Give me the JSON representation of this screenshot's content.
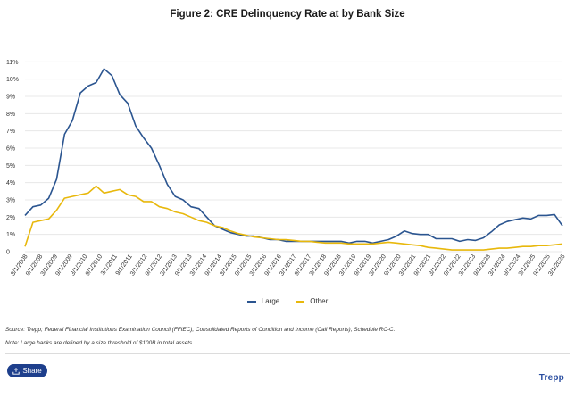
{
  "title": "Figure 2: CRE Delinquency Rate at by Bank Size",
  "source_note": "Source: Trepp; Federal Financial Institutions Examination Council (FFIEC), Consolidated Reports of Condition and Income (Call Reports), Schedule RC-C.",
  "footnote": "Note: Large banks are defined by a size threshold of $100B in total assets.",
  "share_label": "Share",
  "brand": "Trepp",
  "colors": {
    "large": "#2b5590",
    "other": "#e8b80c",
    "grid": "#e3e3e3",
    "tick": "#333333"
  },
  "chart_data": {
    "type": "line",
    "title": "Figure 2: CRE Delinquency Rate at by Bank Size",
    "xlabel": "",
    "ylabel": "",
    "ylim": [
      0,
      12
    ],
    "yticks": [
      "0",
      "1%",
      "2%",
      "3%",
      "4%",
      "5%",
      "6%",
      "7%",
      "8%",
      "9%",
      "10%",
      "11%"
    ],
    "xticks": [
      "3/1/2008",
      "9/1/2008",
      "3/1/2009",
      "9/1/2009",
      "3/1/2010",
      "9/1/2010",
      "3/1/2011",
      "9/1/2011",
      "3/1/2012",
      "9/1/2012",
      "3/1/2013",
      "9/1/2013",
      "3/1/2014",
      "9/1/2014",
      "3/1/2015",
      "9/1/2015",
      "3/1/2016",
      "9/1/2016",
      "3/1/2017",
      "9/1/2017",
      "3/1/2018",
      "9/1/2018",
      "3/1/2019",
      "9/1/2019",
      "3/1/2020",
      "9/1/2020",
      "3/1/2021",
      "9/1/2021",
      "3/1/2022",
      "9/1/2022",
      "3/1/2023",
      "9/1/2023",
      "3/1/2024",
      "9/1/2024",
      "3/1/2025",
      "9/1/2025",
      "3/1/2026"
    ],
    "grid": true,
    "legend_position": "bottom",
    "series": [
      {
        "name": "Large",
        "values": [
          2.1,
          2.6,
          2.7,
          3.1,
          4.2,
          6.8,
          7.6,
          9.2,
          9.6,
          9.8,
          10.6,
          10.2,
          9.1,
          8.6,
          7.3,
          6.6,
          6.0,
          5.0,
          3.9,
          3.2,
          3.0,
          2.6,
          2.5,
          2.0,
          1.5,
          1.3,
          1.1,
          1.0,
          0.9,
          0.9,
          0.8,
          0.7,
          0.7,
          0.6,
          0.6,
          0.6,
          0.6,
          0.6,
          0.6,
          0.6,
          0.6,
          0.5,
          0.6,
          0.6,
          0.5,
          0.6,
          0.7,
          0.9,
          1.2,
          1.05,
          1.0,
          1.0,
          0.75,
          0.75,
          0.75,
          0.6,
          0.7,
          0.65,
          0.8,
          1.15,
          1.55,
          1.75,
          1.85,
          1.95,
          1.9,
          2.1,
          2.1,
          2.15,
          1.5
        ]
      },
      {
        "name": "Other",
        "values": [
          0.3,
          1.7,
          1.8,
          1.9,
          2.4,
          3.1,
          3.2,
          3.3,
          3.4,
          3.8,
          3.4,
          3.5,
          3.6,
          3.3,
          3.2,
          2.9,
          2.9,
          2.6,
          2.5,
          2.3,
          2.2,
          2.0,
          1.8,
          1.7,
          1.5,
          1.4,
          1.2,
          1.05,
          0.95,
          0.85,
          0.8,
          0.75,
          0.7,
          0.7,
          0.65,
          0.6,
          0.6,
          0.55,
          0.5,
          0.5,
          0.5,
          0.45,
          0.45,
          0.45,
          0.45,
          0.5,
          0.55,
          0.5,
          0.45,
          0.4,
          0.35,
          0.25,
          0.2,
          0.15,
          0.1,
          0.1,
          0.1,
          0.1,
          0.1,
          0.15,
          0.2,
          0.2,
          0.25,
          0.3,
          0.3,
          0.35,
          0.35,
          0.4,
          0.45
        ]
      }
    ]
  }
}
